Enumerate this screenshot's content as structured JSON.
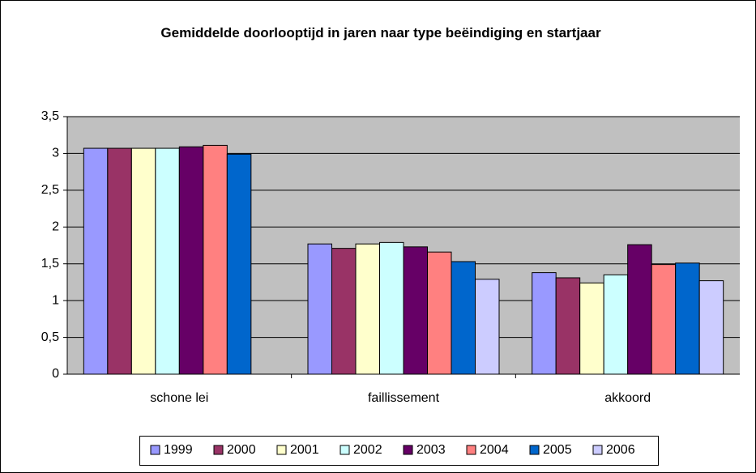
{
  "chart_data": {
    "type": "bar",
    "title": "Gemiddelde doorlooptijd in jaren naar type beëindiging en startjaar",
    "categories": [
      "schone lei",
      "faillissement",
      "akkoord"
    ],
    "series": [
      {
        "name": "1999",
        "color": "#9999ff",
        "values": [
          3.07,
          1.77,
          1.38
        ]
      },
      {
        "name": "2000",
        "color": "#993366",
        "values": [
          3.07,
          1.71,
          1.31
        ]
      },
      {
        "name": "2001",
        "color": "#ffffcc",
        "values": [
          3.07,
          1.77,
          1.24
        ]
      },
      {
        "name": "2002",
        "color": "#ccffff",
        "values": [
          3.07,
          1.79,
          1.35
        ]
      },
      {
        "name": "2003",
        "color": "#660066",
        "values": [
          3.09,
          1.73,
          1.76
        ]
      },
      {
        "name": "2004",
        "color": "#ff8080",
        "values": [
          3.11,
          1.66,
          1.49
        ]
      },
      {
        "name": "2005",
        "color": "#0066cc",
        "values": [
          2.99,
          1.53,
          1.51
        ]
      },
      {
        "name": "2006",
        "color": "#ccccff",
        "values": [
          null,
          1.29,
          1.27
        ]
      }
    ],
    "ylim": [
      0,
      3.5
    ],
    "yticks": [
      0,
      {
        "value": 0.5,
        "label": "0,5"
      },
      1,
      {
        "value": 1.5,
        "label": "1,5"
      },
      2,
      {
        "value": 2.5,
        "label": "2,5"
      },
      3,
      {
        "value": 3.5,
        "label": "3,5"
      }
    ],
    "grid": true,
    "legend": "bottom"
  }
}
